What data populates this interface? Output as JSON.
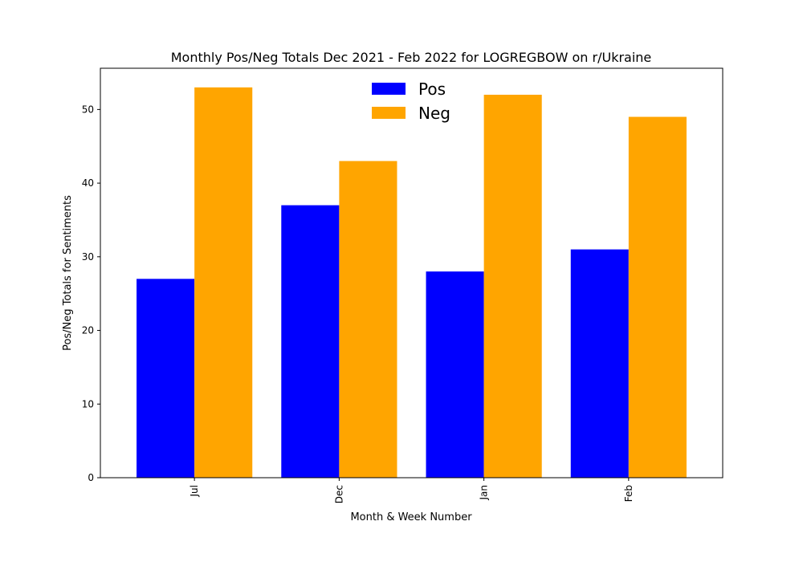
{
  "chart_data": {
    "type": "bar",
    "title": "Monthly Pos/Neg Totals Dec 2021 - Feb 2022 for LOGREGBOW on r/Ukraine",
    "xlabel": "Month & Week Number",
    "ylabel": "Pos/Neg Totals for Sentiments",
    "categories": [
      "Jul",
      "Dec",
      "Jan",
      "Feb"
    ],
    "series": [
      {
        "name": "Pos",
        "color": "#0000ff",
        "values": [
          27,
          37,
          28,
          31
        ]
      },
      {
        "name": "Neg",
        "color": "#ffa500",
        "values": [
          53,
          43,
          52,
          49
        ]
      }
    ],
    "yticks": [
      "0",
      "10",
      "20",
      "30",
      "40",
      "50"
    ],
    "ylim": [
      0,
      55.6
    ],
    "grid": false,
    "legend_position": "top-center"
  }
}
